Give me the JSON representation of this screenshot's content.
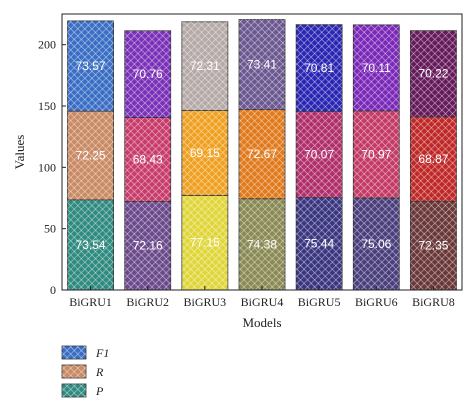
{
  "chart_data": {
    "type": "bar",
    "stacked": true,
    "xlabel": "Models",
    "ylabel": "Values",
    "ylim": [
      0,
      225
    ],
    "yticks": [
      0,
      50,
      100,
      150,
      200
    ],
    "grid": false,
    "legend_position": "bottom-left",
    "categories": [
      "BiGRU1",
      "BiGRU2",
      "BiGRU3",
      "BiGRU4",
      "BiGRU5",
      "BiGRU6",
      "BiGRU8"
    ],
    "series": [
      {
        "name": "P",
        "values": [
          73.54,
          72.16,
          77.15,
          74.38,
          75.44,
          75.06,
          72.35
        ],
        "labels": [
          "73.54",
          "72.16",
          "77.15",
          "74.38",
          "75.44",
          "75.06",
          "72.35"
        ],
        "colors": [
          "#2f8a7f",
          "#6b4a8c",
          "#e0d63a",
          "#8a8a55",
          "#3a3680",
          "#4a3f7c",
          "#6a3838"
        ]
      },
      {
        "name": "R",
        "values": [
          72.25,
          68.43,
          69.15,
          72.67,
          70.07,
          70.97,
          68.87
        ],
        "labels": [
          "72.25",
          "68.43",
          "69.15",
          "72.67",
          "70.07",
          "70.97",
          "68.87"
        ],
        "colors": [
          "#c98a64",
          "#c83c6c",
          "#f0a020",
          "#e07a1c",
          "#b02f6a",
          "#c43a66",
          "#c02828"
        ]
      },
      {
        "name": "F1",
        "values": [
          73.57,
          70.76,
          72.31,
          73.41,
          70.81,
          70.11,
          70.22
        ],
        "labels": [
          "73.57",
          "70.76",
          "72.31",
          "73.41",
          "70.81",
          "70.11",
          "70.22"
        ],
        "colors": [
          "#3a6ec4",
          "#7a30b8",
          "#b5aaa8",
          "#6b5890",
          "#2a26b4",
          "#7a28b8",
          "#651a5a"
        ]
      }
    ],
    "legend_order": [
      "F1",
      "R",
      "P"
    ],
    "legend_colors": {
      "F1": "#3a6ec4",
      "R": "#c98a64",
      "P": "#2f8a7f"
    }
  }
}
